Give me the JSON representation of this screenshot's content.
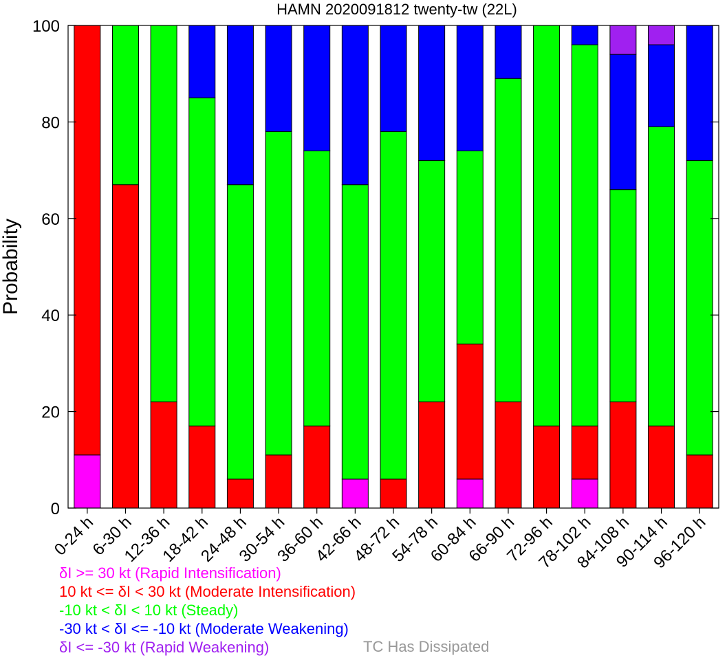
{
  "chart_data": {
    "type": "bar",
    "stacked": true,
    "title": "HAMN 2020091812 twenty-tw (22L)",
    "xlabel": "",
    "ylabel": "Probability",
    "ylim": [
      0,
      100
    ],
    "yticks": [
      0,
      20,
      40,
      60,
      80,
      100
    ],
    "grid": false,
    "categories": [
      "0-24 h",
      "6-30 h",
      "12-36 h",
      "18-42 h",
      "24-48 h",
      "30-54 h",
      "36-60 h",
      "42-66 h",
      "48-72 h",
      "54-78 h",
      "60-84 h",
      "66-90 h",
      "72-96 h",
      "78-102 h",
      "84-108 h",
      "90-114 h",
      "96-120 h"
    ],
    "series": [
      {
        "key": "ri",
        "color": "#ff00ff",
        "values": [
          11,
          0,
          0,
          0,
          0,
          0,
          0,
          6,
          0,
          0,
          6,
          0,
          0,
          6,
          0,
          0,
          0
        ]
      },
      {
        "key": "mi",
        "color": "#ff0000",
        "values": [
          89,
          67,
          22,
          17,
          6,
          11,
          17,
          0,
          6,
          22,
          28,
          22,
          17,
          11,
          22,
          17,
          11
        ]
      },
      {
        "key": "steady",
        "color": "#00ff00",
        "values": [
          0,
          33,
          78,
          68,
          61,
          67,
          57,
          61,
          72,
          50,
          40,
          67,
          83,
          79,
          44,
          62,
          61
        ]
      },
      {
        "key": "mw",
        "color": "#0000ff",
        "values": [
          0,
          0,
          0,
          15,
          33,
          22,
          26,
          33,
          22,
          28,
          26,
          11,
          0,
          4,
          28,
          17,
          28
        ]
      },
      {
        "key": "rw",
        "color": "#a020f0",
        "values": [
          0,
          0,
          0,
          0,
          0,
          0,
          0,
          0,
          0,
          0,
          0,
          0,
          0,
          0,
          6,
          4,
          0
        ]
      }
    ],
    "legend": {
      "placement": "bottom-left",
      "entries": [
        {
          "label": "δI >= 30 kt (Rapid Intensification)",
          "color": "#ff00ff"
        },
        {
          "label": "10 kt <= δI < 30 kt (Moderate Intensification)",
          "color": "#ff0000"
        },
        {
          "label": "-10 kt < δI < 10 kt (Steady)",
          "color": "#00ff00"
        },
        {
          "label": "-30 kt < δI <= -10 kt (Moderate Weakening)",
          "color": "#0000ff"
        },
        {
          "label": "δI <= -30 kt (Rapid Weakening)",
          "color": "#a020f0"
        }
      ],
      "dissipated_label": "TC Has Dissipated",
      "dissipated_color": "#999999"
    }
  }
}
